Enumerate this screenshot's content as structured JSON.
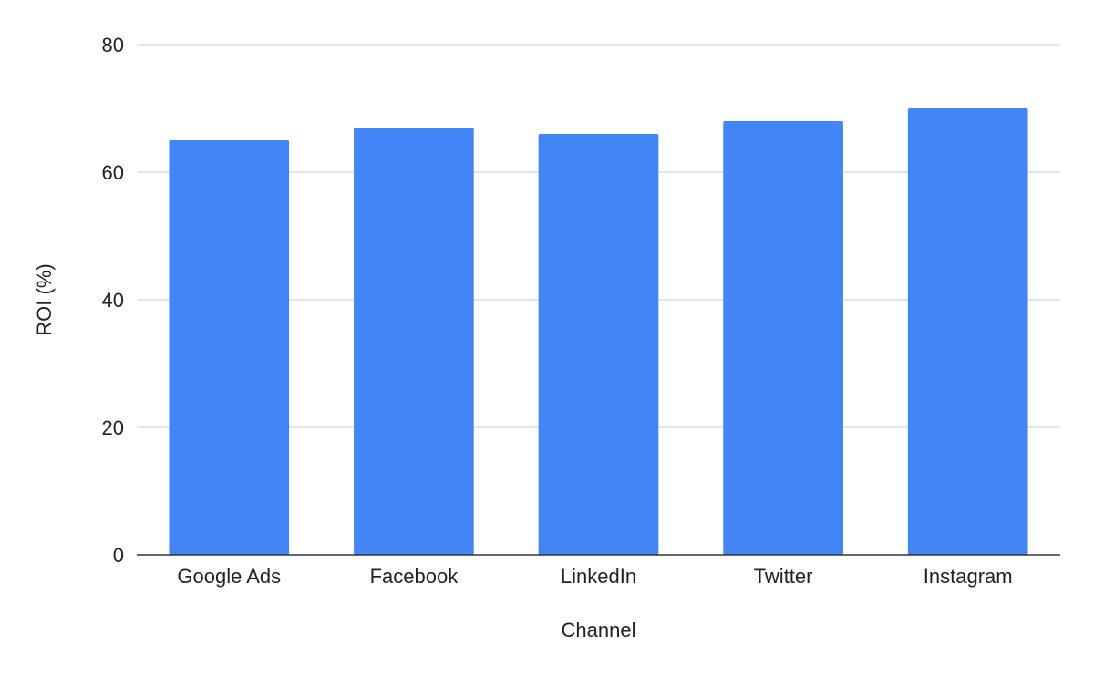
{
  "chart_data": {
    "type": "bar",
    "title": "",
    "xlabel": "Channel",
    "ylabel": "ROI (%)",
    "categories": [
      "Google Ads",
      "Facebook",
      "LinkedIn",
      "Twitter",
      "Instagram"
    ],
    "series": [
      {
        "values": [
          65,
          67,
          66,
          68,
          70
        ],
        "color": "#4285f4"
      }
    ],
    "ylim": [
      0,
      80
    ],
    "yticks": [
      0,
      20,
      40,
      60,
      80
    ],
    "grid": true,
    "legend": "none"
  }
}
